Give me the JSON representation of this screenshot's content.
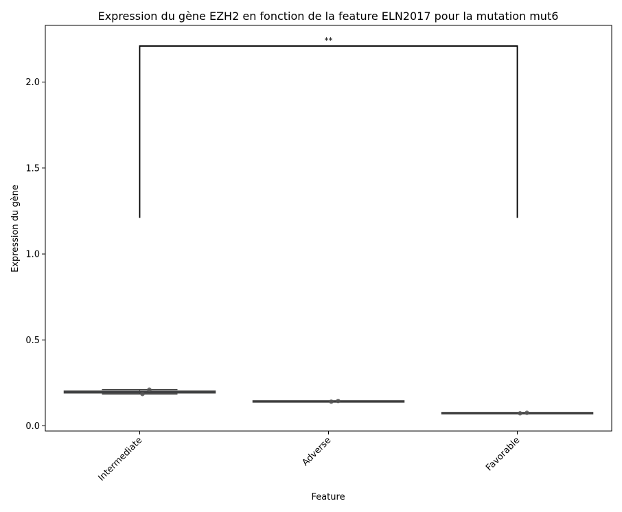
{
  "chart_data": {
    "type": "box",
    "title": "Expression du gène EZH2 en fonction de la feature ELN2017 pour la mutation mut6",
    "xlabel": "Feature",
    "ylabel": "Expression du gène",
    "categories": [
      "Intermediate",
      "Adverse",
      "Favorable"
    ],
    "ylim": [
      -0.03,
      2.33
    ],
    "yticks": [
      0.0,
      0.5,
      1.0,
      1.5,
      2.0
    ],
    "ytick_labels": [
      "0.0",
      "0.5",
      "1.0",
      "1.5",
      "2.0"
    ],
    "boxes": [
      {
        "category": "Intermediate",
        "min": 0.185,
        "q1": 0.191,
        "median": 0.197,
        "q3": 0.203,
        "max": 0.211,
        "points": [
          0.211,
          0.185
        ]
      },
      {
        "category": "Adverse",
        "min": 0.14,
        "q1": 0.141,
        "median": 0.142,
        "q3": 0.143,
        "max": 0.145,
        "points": [
          0.145,
          0.141
        ]
      },
      {
        "category": "Favorable",
        "min": 0.072,
        "q1": 0.073,
        "median": 0.074,
        "q3": 0.075,
        "max": 0.076,
        "points": [
          0.076,
          0.073
        ]
      }
    ],
    "annotations": [
      {
        "from": "Intermediate",
        "to": "Favorable",
        "y_top": 2.21,
        "y_bottom": 1.21,
        "label": "**"
      }
    ],
    "colors": {
      "box_fill": "#3b4c6b",
      "box_edge": "#3f3f3f",
      "points": "#555555",
      "bracket": "#000000"
    }
  }
}
